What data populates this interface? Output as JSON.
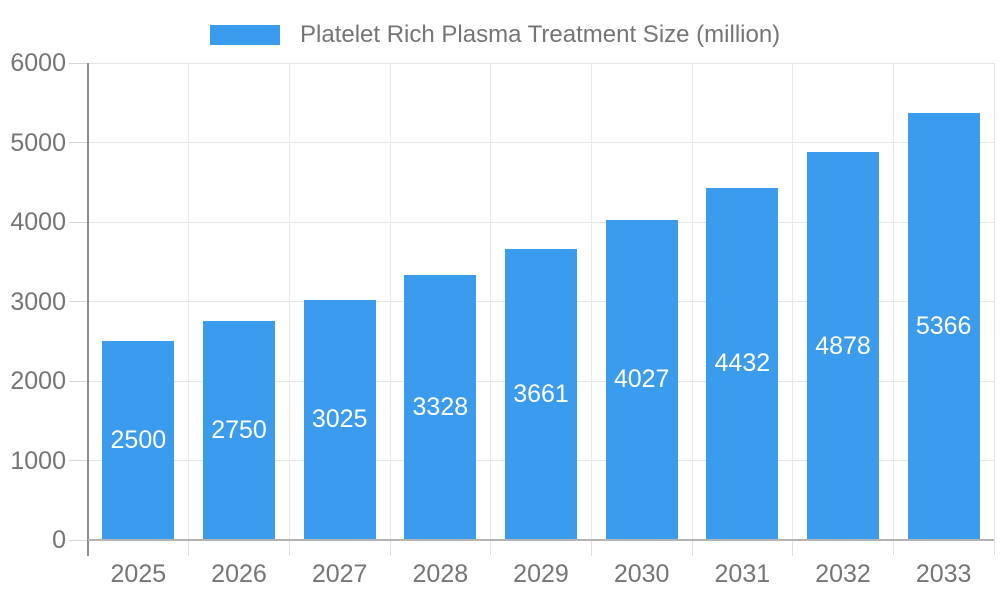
{
  "legend": {
    "label": "Platelet Rich Plasma Treatment Size (million)"
  },
  "chart_data": {
    "type": "bar",
    "title": "",
    "categories": [
      "2025",
      "2026",
      "2027",
      "2028",
      "2029",
      "2030",
      "2031",
      "2032",
      "2033"
    ],
    "series": [
      {
        "name": "Platelet Rich Plasma Treatment Size (million)",
        "values": [
          2500,
          2750,
          3025,
          3328,
          3661,
          4027,
          4432,
          4878,
          5366
        ]
      }
    ],
    "value_labels_shown": true,
    "value_label_position": "inside-center",
    "xlabel": "",
    "ylabel": "",
    "ylim": [
      0,
      6000
    ],
    "ytick_interval": 1000,
    "yticks": [
      0,
      1000,
      2000,
      3000,
      4000,
      5000,
      6000
    ],
    "grid": true,
    "legend_position": "top"
  },
  "colors": {
    "bar": "#3b9cee",
    "gridline": "#e6e6e6",
    "vertical_gridline": "#e9e9e9",
    "axis_line": "#8f8f8f",
    "baseline": "#b3b3b3",
    "tick": "#d6d6d6",
    "x_tick": "#e0e0e0",
    "axis_label_text": "#757575",
    "value_label_text": "#ffffff",
    "background": "#ffffff"
  }
}
